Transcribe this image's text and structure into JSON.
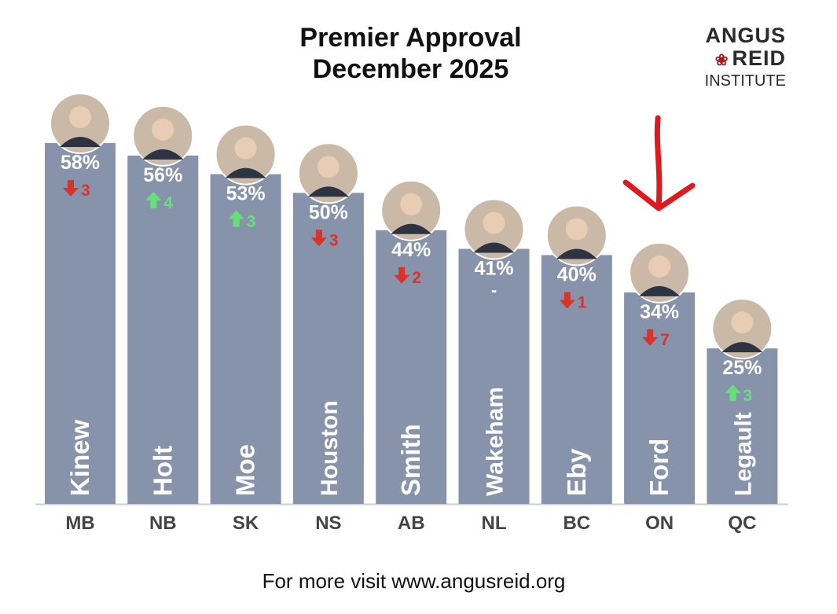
{
  "title_line1": "Premier Approval",
  "title_line2": "December 2025",
  "logo": {
    "line1": "ANGUS",
    "line2": "REID",
    "line3": "INSTITUTE"
  },
  "footer": "For more visit www.angusreid.org",
  "colors": {
    "bar": "#8793ab",
    "up": "#66e07a",
    "down": "#d9342b",
    "axis": "#cfcfcf",
    "annotation_arrow": "#e0191f"
  },
  "chart_data": {
    "type": "bar",
    "title": "Premier Approval December 2025",
    "ylim": [
      0,
      70
    ],
    "categories": [
      "MB",
      "NB",
      "SK",
      "NS",
      "AB",
      "NL",
      "BC",
      "ON",
      "QC"
    ],
    "names": [
      "Kinew",
      "Holt",
      "Moe",
      "Houston",
      "Smith",
      "Wakeham",
      "Eby",
      "Ford",
      "Legault"
    ],
    "values": [
      58,
      56,
      53,
      50,
      44,
      41,
      40,
      34,
      25
    ],
    "value_labels": [
      "58%",
      "56%",
      "53%",
      "50%",
      "44%",
      "41%",
      "40%",
      "34%",
      "25%"
    ],
    "changes": [
      {
        "dir": "down",
        "label": "3"
      },
      {
        "dir": "up",
        "label": "4"
      },
      {
        "dir": "up",
        "label": "3"
      },
      {
        "dir": "down",
        "label": "3"
      },
      {
        "dir": "down",
        "label": "2"
      },
      {
        "dir": "none",
        "label": "-"
      },
      {
        "dir": "down",
        "label": "1"
      },
      {
        "dir": "down",
        "label": "7"
      },
      {
        "dir": "up",
        "label": "3"
      }
    ],
    "highlight": "ON"
  }
}
